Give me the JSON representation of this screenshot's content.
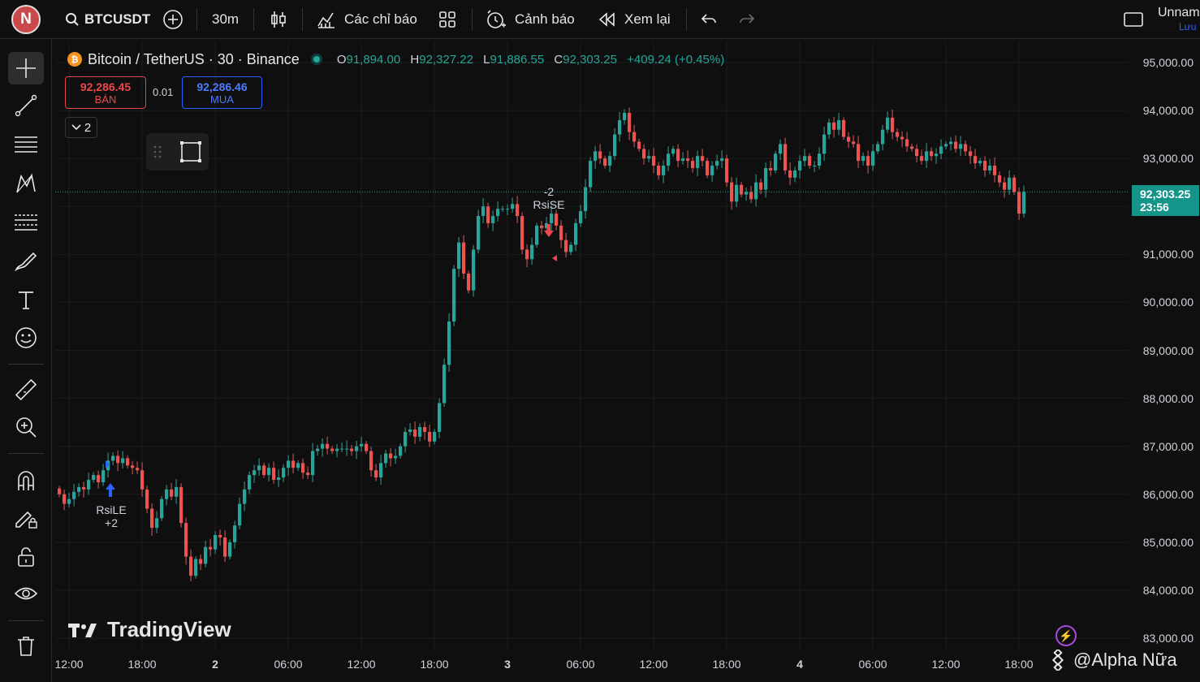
{
  "topbar": {
    "avatar_letter": "N",
    "symbol": "BTCUSDT",
    "interval": "30m",
    "indicators_label": "Các chỉ báo",
    "alert_label": "Cảnh báo",
    "replay_label": "Xem lại",
    "layout_name": "Unnam",
    "save_label": "Lưu"
  },
  "legend": {
    "title": "Bitcoin / TetherUS · 30 · Binance",
    "o_key": "O",
    "o_val": "91,894.00",
    "h_key": "H",
    "h_val": "92,327.22",
    "l_key": "L",
    "l_val": "91,886.55",
    "c_key": "C",
    "c_val": "92,303.25",
    "change": "+409.24 (+0.45%)"
  },
  "trade": {
    "sell_price": "92,286.45",
    "sell_label": "BÁN",
    "spread": "0.01",
    "buy_price": "92,286.46",
    "buy_label": "MUA",
    "indicator_count": "2"
  },
  "price_tag": {
    "price": "92,303.25",
    "countdown": "23:56"
  },
  "signals": {
    "long_label": "RsiLE",
    "long_qty": "+2",
    "short_label": "RsiSE",
    "short_qty": "-2"
  },
  "branding": {
    "logo": "TradingView",
    "watermark": "@Alpha Nữa"
  },
  "colors": {
    "up": "#26a69a",
    "down": "#ef5350",
    "accent": "#2962ff"
  },
  "chart_data": {
    "type": "candlestick",
    "title": "Bitcoin / TetherUS · 30 · Binance",
    "y_ticks": [
      "95,000.00",
      "94,000.00",
      "93,000.00",
      "92,000.00",
      "91,000.00",
      "90,000.00",
      "89,000.00",
      "88,000.00",
      "87,000.00",
      "86,000.00",
      "85,000.00",
      "84,000.00",
      "83,000.00"
    ],
    "ylim": [
      82800,
      95300
    ],
    "x_ticks": [
      {
        "label": "12:00",
        "bold": false
      },
      {
        "label": "18:00",
        "bold": false
      },
      {
        "label": "2",
        "bold": true
      },
      {
        "label": "06:00",
        "bold": false
      },
      {
        "label": "12:00",
        "bold": false
      },
      {
        "label": "18:00",
        "bold": false
      },
      {
        "label": "3",
        "bold": true
      },
      {
        "label": "06:00",
        "bold": false
      },
      {
        "label": "12:00",
        "bold": false
      },
      {
        "label": "18:00",
        "bold": false
      },
      {
        "label": "4",
        "bold": true
      },
      {
        "label": "06:00",
        "bold": false
      },
      {
        "label": "12:00",
        "bold": false
      },
      {
        "label": "18:00",
        "bold": false
      }
    ],
    "last_price": 92303.25,
    "closes": [
      86000,
      85800,
      85900,
      86050,
      86150,
      86100,
      86300,
      86400,
      86250,
      86500,
      86700,
      86800,
      86650,
      86750,
      86600,
      86550,
      86500,
      86100,
      85700,
      85300,
      85500,
      85900,
      86100,
      85950,
      86150,
      85400,
      84700,
      84300,
      84650,
      84550,
      84900,
      84850,
      85150,
      85100,
      84700,
      85000,
      85350,
      85800,
      86100,
      86400,
      86500,
      86600,
      86400,
      86550,
      86300,
      86350,
      86550,
      86700,
      86550,
      86650,
      86450,
      86400,
      86900,
      86950,
      87050,
      86950,
      86900,
      86950,
      86950,
      86950,
      86900,
      87000,
      87050,
      86900,
      86500,
      86350,
      86650,
      86850,
      86750,
      86800,
      87000,
      87300,
      87350,
      87200,
      87400,
      87300,
      87100,
      87300,
      87900,
      88700,
      89600,
      90700,
      91250,
      90600,
      90250,
      91100,
      91800,
      92000,
      91650,
      91800,
      91950,
      91950,
      91950,
      92050,
      91800,
      91100,
      90900,
      91200,
      91600,
      91550,
      91650,
      91850,
      91600,
      91300,
      91050,
      91200,
      91650,
      91900,
      92400,
      92950,
      93150,
      93000,
      92850,
      93050,
      93500,
      93800,
      93950,
      93550,
      93350,
      93200,
      93000,
      93050,
      92850,
      92650,
      92850,
      93100,
      93200,
      92950,
      93000,
      92950,
      92800,
      93050,
      92950,
      92650,
      92850,
      92950,
      93000,
      92500,
      92100,
      92450,
      92250,
      92300,
      92150,
      92500,
      92350,
      92800,
      92750,
      93100,
      93300,
      92750,
      92600,
      92750,
      92950,
      93050,
      92850,
      92850,
      93100,
      93500,
      93750,
      93600,
      93800,
      93450,
      93350,
      93300,
      92950,
      93050,
      92850,
      93150,
      93300,
      93600,
      93850,
      93550,
      93450,
      93400,
      93250,
      93200,
      93050,
      92950,
      93150,
      93050,
      93100,
      93250,
      93300,
      93350,
      93200,
      93300,
      93150,
      93050,
      92900,
      92950,
      92750,
      92850,
      92650,
      92500,
      92350,
      92600,
      92300,
      91850,
      92303
    ]
  }
}
